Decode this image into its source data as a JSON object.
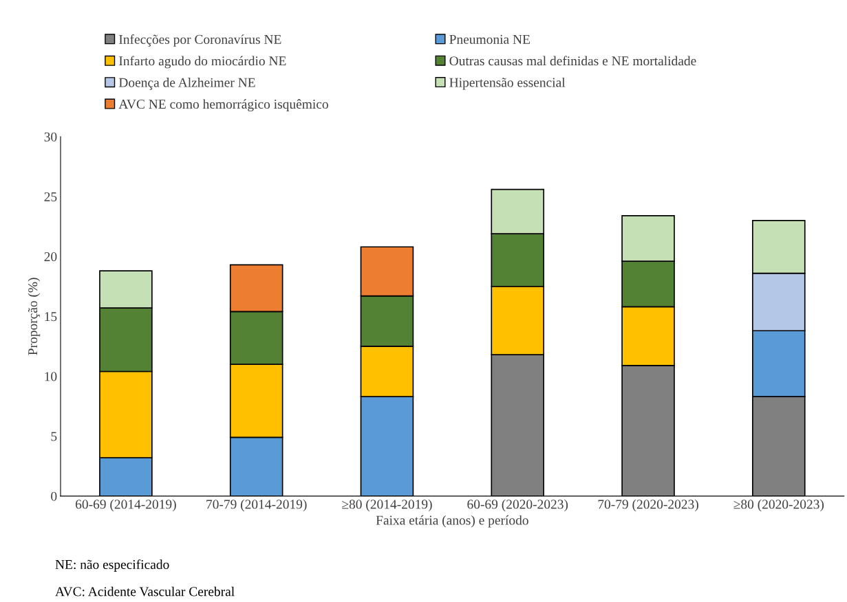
{
  "chart_data": {
    "type": "bar",
    "stacked": true,
    "xlabel": "Faixa etária (anos) e período",
    "ylabel": "Proporção (%)",
    "categories": [
      "60-69 (2014-2019)",
      "70-79 (2014-2019)",
      "≥80 (2014-2019)",
      "60-69 (2020-2023)",
      "70-79 (2020-2023)",
      "≥80 (2020-2023)"
    ],
    "series": [
      {
        "name": "Infecções por Coronavírus NE",
        "color": "#808080",
        "values": [
          null,
          null,
          null,
          11.8,
          10.9,
          8.3
        ]
      },
      {
        "name": "Pneumonia NE",
        "color": "#5b9bd5",
        "values": [
          3.2,
          4.9,
          8.3,
          null,
          null,
          5.5
        ]
      },
      {
        "name": "Infarto agudo do miocárdio NE",
        "color": "#ffc000",
        "values": [
          7.2,
          6.1,
          4.2,
          5.7,
          4.9,
          null
        ]
      },
      {
        "name": "Outras causas mal definidas e NE mortalidade",
        "color": "#548235",
        "values": [
          5.3,
          4.4,
          4.2,
          4.4,
          3.8,
          null
        ]
      },
      {
        "name": "Doença de Alzheimer NE",
        "color": "#b4c7e7",
        "values": [
          null,
          null,
          null,
          null,
          null,
          4.8
        ]
      },
      {
        "name": "Hipertensão essencial",
        "color": "#c5e0b4",
        "values": [
          3.1,
          null,
          null,
          3.7,
          3.8,
          4.4
        ]
      },
      {
        "name": "AVC NE como hemorrágico isquêmico",
        "color": "#ed7d31",
        "values": [
          null,
          3.9,
          4.1,
          null,
          null,
          null
        ]
      }
    ],
    "ylim": [
      0,
      30
    ],
    "yticks": [
      0,
      5,
      10,
      15,
      20,
      25,
      30
    ],
    "grid": false,
    "legend": "top",
    "annotations": [
      "NE: não especificado",
      "AVC: Acidente Vascular Cerebral"
    ]
  }
}
